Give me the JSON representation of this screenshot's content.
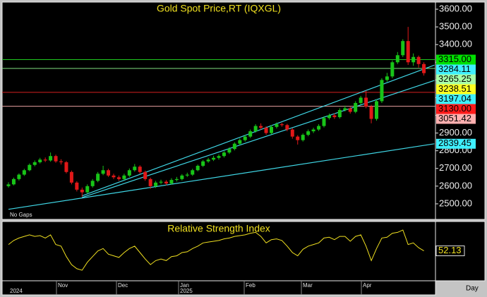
{
  "chart_data": {
    "type": "candlestick",
    "title": "Gold Spot Price,RT  (IQXGL)",
    "note": "No Gaps",
    "period": "Day",
    "up_color": "#18c418",
    "down_color": "#e01818",
    "open": [
      2600,
      2610,
      2640,
      2665,
      2690,
      2720,
      2735,
      2750,
      2745,
      2770,
      2740,
      2735,
      2680,
      2620,
      2580,
      2565,
      2600,
      2630,
      2670,
      2690,
      2660,
      2650,
      2640,
      2660,
      2690,
      2710,
      2680,
      2640,
      2600,
      2620,
      2625,
      2615,
      2635,
      2640,
      2660,
      2665,
      2690,
      2715,
      2740,
      2750,
      2760,
      2770,
      2790,
      2810,
      2840,
      2860,
      2880,
      2910,
      2940,
      2930,
      2900,
      2935,
      2950,
      2945,
      2920,
      2880,
      2860,
      2890,
      2910,
      2920,
      2940,
      2985,
      3000,
      2990,
      3030,
      3040,
      3020,
      3070,
      3100,
      3050,
      2980,
      3080,
      3200,
      3220,
      3300,
      3340,
      3420,
      3300,
      3330,
      3290
    ],
    "high": [
      2622,
      2648,
      2672,
      2698,
      2728,
      2745,
      2760,
      2762,
      2790,
      2778,
      2752,
      2742,
      2688,
      2628,
      2592,
      2610,
      2640,
      2680,
      2715,
      2698,
      2670,
      2660,
      2670,
      2700,
      2725,
      2718,
      2688,
      2648,
      2630,
      2636,
      2634,
      2645,
      2652,
      2668,
      2676,
      2698,
      2722,
      2748,
      2760,
      2772,
      2780,
      2798,
      2820,
      2848,
      2870,
      2890,
      2920,
      2950,
      2955,
      2938,
      2945,
      2960,
      2958,
      2952,
      2928,
      2888,
      2898,
      2920,
      2930,
      2950,
      2995,
      3010,
      3012,
      3040,
      3055,
      3048,
      3080,
      3110,
      3140,
      3060,
      3090,
      3210,
      3240,
      3310,
      3358,
      3430,
      3500,
      3350,
      3338,
      3300
    ],
    "low": [
      2592,
      2604,
      2632,
      2658,
      2684,
      2712,
      2728,
      2736,
      2738,
      2732,
      2722,
      2672,
      2610,
      2570,
      2540,
      2558,
      2592,
      2622,
      2662,
      2652,
      2640,
      2630,
      2634,
      2652,
      2682,
      2670,
      2630,
      2585,
      2590,
      2610,
      2605,
      2608,
      2626,
      2632,
      2652,
      2658,
      2684,
      2708,
      2732,
      2742,
      2750,
      2762,
      2782,
      2802,
      2832,
      2852,
      2872,
      2902,
      2920,
      2890,
      2892,
      2926,
      2936,
      2910,
      2868,
      2835,
      2852,
      2882,
      2900,
      2912,
      2932,
      2976,
      2980,
      2982,
      3022,
      3010,
      3012,
      3062,
      3040,
      2955,
      2970,
      3070,
      3190,
      3210,
      3290,
      3330,
      3285,
      3280,
      3270,
      3225
    ],
    "close": [
      2610,
      2640,
      2665,
      2690,
      2720,
      2735,
      2750,
      2745,
      2770,
      2740,
      2735,
      2680,
      2620,
      2580,
      2565,
      2600,
      2630,
      2670,
      2690,
      2660,
      2650,
      2640,
      2660,
      2690,
      2710,
      2680,
      2640,
      2600,
      2620,
      2625,
      2615,
      2635,
      2640,
      2660,
      2665,
      2690,
      2715,
      2740,
      2750,
      2760,
      2770,
      2790,
      2810,
      2840,
      2860,
      2880,
      2910,
      2940,
      2930,
      2900,
      2935,
      2950,
      2945,
      2920,
      2880,
      2860,
      2890,
      2910,
      2920,
      2940,
      2985,
      3000,
      2990,
      3030,
      3040,
      3020,
      3070,
      3100,
      3050,
      2980,
      3080,
      3200,
      3220,
      3300,
      3340,
      3420,
      3300,
      3330,
      3290,
      3238.51
    ],
    "last_label": "3238.51",
    "ylim": [
      2412,
      3640
    ],
    "yticks": [
      {
        "value": 2500,
        "label": "2500.00"
      },
      {
        "value": 2600,
        "label": "2600.00"
      },
      {
        "value": 2700,
        "label": "2700.00"
      },
      {
        "value": 2800,
        "label": "2800.00"
      },
      {
        "value": 2900,
        "label": "2900.00"
      },
      {
        "value": 3000,
        "label": "3000.00"
      },
      {
        "value": 3100,
        "label": "3100.00"
      },
      {
        "value": 3200,
        "label": "3200.00"
      },
      {
        "value": 3300,
        "label": "3300.00"
      },
      {
        "value": 3400,
        "label": "3400.00"
      },
      {
        "value": 3500,
        "label": "3500.00"
      },
      {
        "value": 3600,
        "label": "3600.00"
      }
    ],
    "levels": [
      {
        "value": 3315,
        "label": "3315.00",
        "color": "#1ec81e",
        "label_bg": "#00e000"
      },
      {
        "value": 3265.25,
        "label": "3265.25",
        "color": "#7fe07f",
        "label_bg": "#a8ffa8"
      },
      {
        "value": 3130,
        "label": "3130.00",
        "color": "#d42020",
        "label_bg": "#ff1a1a"
      },
      {
        "value": 3051.42,
        "label": "3051.42",
        "color": "#e8a0a0",
        "label_bg": "#ffb0b0"
      }
    ],
    "trendlines": [
      {
        "x": [
          0,
          81
        ],
        "start": 2469,
        "end": 2839.45,
        "label": "2839.45",
        "color": "#3fd7e6",
        "label_bg": "#3ff0ff"
      },
      {
        "x": [
          14,
          81
        ],
        "start": 2536,
        "end": 3197.04,
        "label": "3197.04",
        "color": "#3fd7e6",
        "label_bg": "#3ff0ff"
      },
      {
        "x": [
          14,
          81
        ],
        "start": 2545,
        "end": 3284.11,
        "label": "3284.11",
        "color": "#3fd7e6",
        "label_bg": "#3ff0ff"
      }
    ],
    "x_labels": [
      "Nov",
      "Dec",
      "Jan",
      "Feb",
      "Mar",
      "Apr"
    ],
    "year_labels": [
      "2024",
      "2025"
    ],
    "indicator": {
      "type": "line",
      "title": "Relative Strength Index",
      "color": "#f0e020",
      "ylim": [
        15,
        85
      ],
      "values": [
        60,
        65,
        68,
        70,
        72,
        70,
        71,
        68,
        72,
        60,
        58,
        45,
        35,
        30,
        28,
        38,
        45,
        52,
        55,
        48,
        46,
        44,
        50,
        55,
        58,
        50,
        42,
        35,
        40,
        42,
        40,
        45,
        46,
        50,
        51,
        55,
        58,
        62,
        63,
        64,
        65,
        67,
        68,
        70,
        71,
        72,
        74,
        75,
        70,
        62,
        66,
        67,
        65,
        58,
        50,
        46,
        54,
        58,
        60,
        62,
        68,
        69,
        66,
        70,
        70,
        64,
        70,
        72,
        58,
        40,
        55,
        68,
        69,
        74,
        75,
        78,
        60,
        62,
        56,
        52.13
      ],
      "last_label": "52.13"
    }
  }
}
